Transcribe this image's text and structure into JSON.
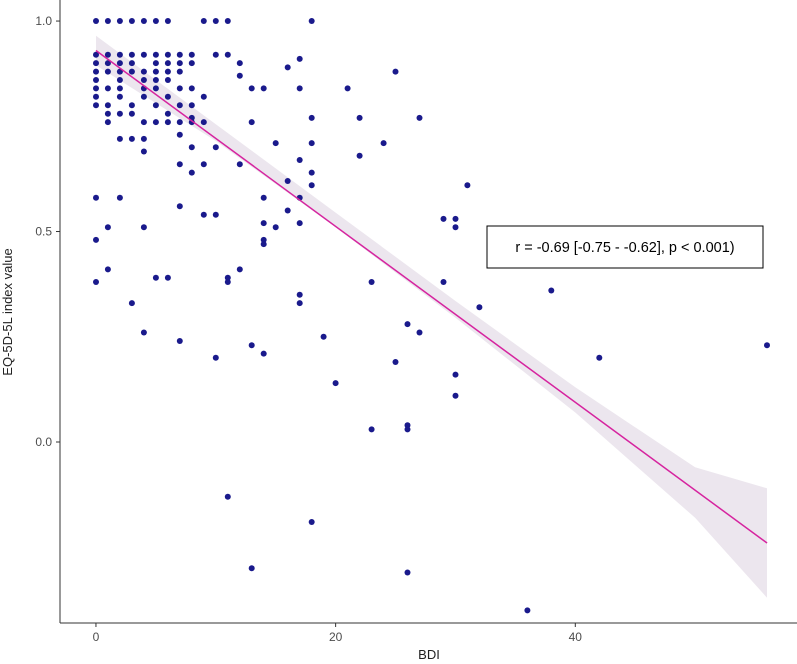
{
  "chart_data": {
    "type": "scatter",
    "title": "",
    "xlabel": "BDI",
    "ylabel": "EQ-5D-5L index value",
    "xlim": [
      -3,
      58.5
    ],
    "ylim": [
      -0.43,
      1.05
    ],
    "x_ticks": [
      0,
      20,
      40
    ],
    "y_ticks": [
      0.0,
      0.5,
      1.0
    ],
    "x_tick_labels": [
      "0",
      "20",
      "40"
    ],
    "y_tick_labels": [
      "0.0",
      "0.5",
      "1.0"
    ],
    "grid": false,
    "annotation": "r = -0.69 [-0.75 - -0.62], p < 0.001)",
    "colors": {
      "points": "#1a1a8c",
      "fit_line": "#d6249f",
      "ci_band": "#ece6ee",
      "axis": "#333333"
    },
    "fit_line": {
      "x": [
        0,
        56
      ],
      "y": [
        0.93,
        -0.24
      ]
    },
    "ci_band": {
      "x": [
        0,
        10,
        20,
        30,
        40,
        50,
        56
      ],
      "lower": [
        0.895,
        0.715,
        0.51,
        0.295,
        0.07,
        -0.18,
        -0.37
      ],
      "upper": [
        0.965,
        0.755,
        0.545,
        0.335,
        0.13,
        -0.06,
        -0.11
      ]
    },
    "points": [
      [
        0,
        1.0
      ],
      [
        1,
        1.0
      ],
      [
        2,
        1.0
      ],
      [
        3,
        1.0
      ],
      [
        4,
        1.0
      ],
      [
        5,
        1.0
      ],
      [
        6,
        1.0
      ],
      [
        9,
        1.0
      ],
      [
        10,
        1.0
      ],
      [
        11,
        1.0
      ],
      [
        18,
        1.0
      ],
      [
        0,
        0.92
      ],
      [
        1,
        0.92
      ],
      [
        2,
        0.92
      ],
      [
        3,
        0.92
      ],
      [
        4,
        0.92
      ],
      [
        5,
        0.92
      ],
      [
        6,
        0.92
      ],
      [
        7,
        0.92
      ],
      [
        8,
        0.92
      ],
      [
        10,
        0.92
      ],
      [
        11,
        0.92
      ],
      [
        0,
        0.9
      ],
      [
        1,
        0.9
      ],
      [
        2,
        0.9
      ],
      [
        3,
        0.9
      ],
      [
        5,
        0.9
      ],
      [
        6,
        0.9
      ],
      [
        7,
        0.9
      ],
      [
        8,
        0.9
      ],
      [
        12,
        0.9
      ],
      [
        0,
        0.88
      ],
      [
        1,
        0.88
      ],
      [
        2,
        0.88
      ],
      [
        3,
        0.88
      ],
      [
        4,
        0.88
      ],
      [
        5,
        0.88
      ],
      [
        6,
        0.88
      ],
      [
        7,
        0.88
      ],
      [
        12,
        0.87
      ],
      [
        16,
        0.89
      ],
      [
        17,
        0.91
      ],
      [
        0,
        0.86
      ],
      [
        2,
        0.86
      ],
      [
        4,
        0.86
      ],
      [
        5,
        0.86
      ],
      [
        6,
        0.86
      ],
      [
        0,
        0.84
      ],
      [
        1,
        0.84
      ],
      [
        2,
        0.84
      ],
      [
        4,
        0.84
      ],
      [
        5,
        0.84
      ],
      [
        7,
        0.84
      ],
      [
        8,
        0.84
      ],
      [
        13,
        0.84
      ],
      [
        14,
        0.84
      ],
      [
        17,
        0.84
      ],
      [
        0,
        0.82
      ],
      [
        2,
        0.82
      ],
      [
        4,
        0.82
      ],
      [
        6,
        0.82
      ],
      [
        9,
        0.82
      ],
      [
        0,
        0.8
      ],
      [
        1,
        0.8
      ],
      [
        3,
        0.8
      ],
      [
        5,
        0.8
      ],
      [
        7,
        0.8
      ],
      [
        8,
        0.8
      ],
      [
        1,
        0.78
      ],
      [
        2,
        0.78
      ],
      [
        3,
        0.78
      ],
      [
        6,
        0.78
      ],
      [
        8,
        0.77
      ],
      [
        13,
        0.76
      ],
      [
        18,
        0.77
      ],
      [
        1,
        0.76
      ],
      [
        4,
        0.76
      ],
      [
        5,
        0.76
      ],
      [
        6,
        0.76
      ],
      [
        7,
        0.76
      ],
      [
        8,
        0.76
      ],
      [
        9,
        0.76
      ],
      [
        2,
        0.72
      ],
      [
        3,
        0.72
      ],
      [
        4,
        0.72
      ],
      [
        7,
        0.73
      ],
      [
        15,
        0.71
      ],
      [
        18,
        0.71
      ],
      [
        4,
        0.69
      ],
      [
        8,
        0.7
      ],
      [
        10,
        0.7
      ],
      [
        17,
        0.67
      ],
      [
        7,
        0.66
      ],
      [
        9,
        0.66
      ],
      [
        12,
        0.66
      ],
      [
        8,
        0.64
      ],
      [
        18,
        0.64
      ],
      [
        16,
        0.62
      ],
      [
        18,
        0.61
      ],
      [
        0,
        0.58
      ],
      [
        2,
        0.58
      ],
      [
        14,
        0.58
      ],
      [
        17,
        0.58
      ],
      [
        16,
        0.55
      ],
      [
        7,
        0.56
      ],
      [
        9,
        0.54
      ],
      [
        10,
        0.54
      ],
      [
        14,
        0.52
      ],
      [
        17,
        0.52
      ],
      [
        15,
        0.51
      ],
      [
        1,
        0.51
      ],
      [
        4,
        0.51
      ],
      [
        0,
        0.48
      ],
      [
        14,
        0.48
      ],
      [
        14,
        0.47
      ],
      [
        1,
        0.41
      ],
      [
        12,
        0.41
      ],
      [
        5,
        0.39
      ],
      [
        6,
        0.39
      ],
      [
        11,
        0.39
      ],
      [
        11,
        0.38
      ],
      [
        0,
        0.38
      ],
      [
        17,
        0.35
      ],
      [
        17,
        0.33
      ],
      [
        3,
        0.33
      ],
      [
        4,
        0.26
      ],
      [
        7,
        0.24
      ],
      [
        13,
        0.23
      ],
      [
        10,
        0.2
      ],
      [
        14,
        0.21
      ],
      [
        21,
        0.84
      ],
      [
        22,
        0.77
      ],
      [
        24,
        0.71
      ],
      [
        22,
        0.68
      ],
      [
        25,
        0.88
      ],
      [
        27,
        0.77
      ],
      [
        29,
        0.53
      ],
      [
        30,
        0.53
      ],
      [
        30,
        0.51
      ],
      [
        31,
        0.61
      ],
      [
        29,
        0.38
      ],
      [
        32,
        0.32
      ],
      [
        38,
        0.36
      ],
      [
        23,
        0.38
      ],
      [
        19,
        0.25
      ],
      [
        26,
        0.28
      ],
      [
        27,
        0.26
      ],
      [
        25,
        0.19
      ],
      [
        20,
        0.14
      ],
      [
        30,
        0.16
      ],
      [
        30,
        0.11
      ],
      [
        23,
        0.03
      ],
      [
        26,
        0.04
      ],
      [
        26,
        0.03
      ],
      [
        42,
        0.2
      ],
      [
        56,
        0.23
      ],
      [
        11,
        -0.13
      ],
      [
        18,
        -0.19
      ],
      [
        13,
        -0.3
      ],
      [
        26,
        -0.31
      ],
      [
        36,
        -0.4
      ]
    ]
  }
}
